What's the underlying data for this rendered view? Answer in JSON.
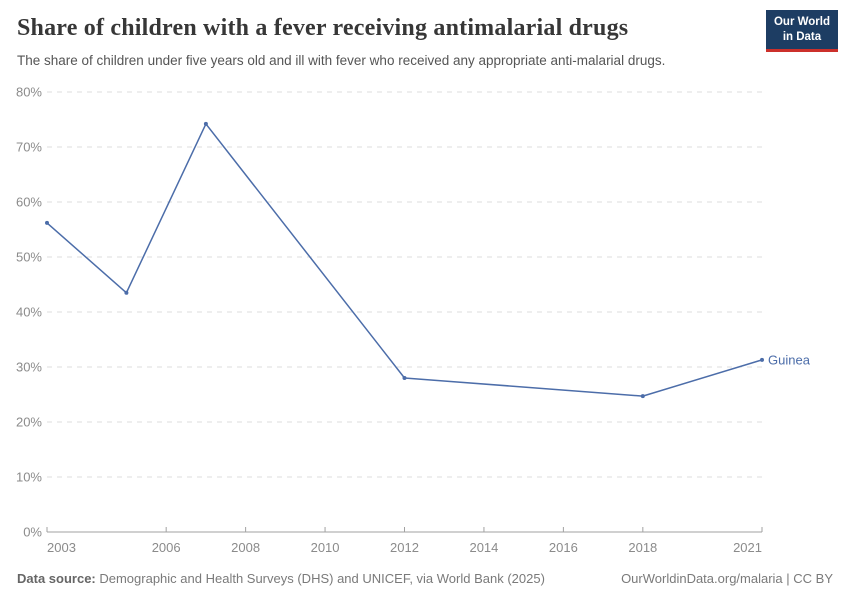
{
  "header": {
    "title": "Share of children with a fever receiving antimalarial drugs",
    "subtitle": "The share of children under five years old and ill with fever who received any appropriate anti-malarial drugs.",
    "logo": {
      "line1": "Our World",
      "line2": "in Data",
      "bg_color": "#1d3d63",
      "accent_color": "#cc302b"
    }
  },
  "chart_data": {
    "type": "line",
    "title": "Share of children with a fever receiving antimalarial drugs",
    "xlabel": "",
    "ylabel": "",
    "x_range": [
      2003,
      2021
    ],
    "x_ticks": [
      2003,
      2006,
      2008,
      2010,
      2012,
      2014,
      2016,
      2018,
      2021
    ],
    "ylim": [
      0,
      80
    ],
    "y_tick_step": 10,
    "y_tick_suffix": "%",
    "grid": "horizontal-dashed",
    "legend_position": "end-of-line",
    "colors": {
      "grid": "#dedede",
      "axis": "#a1a1a1",
      "tick_label": "#8b8b8b"
    },
    "series": [
      {
        "name": "Guinea",
        "color": "#4c6da9",
        "points": [
          {
            "year": 2003,
            "value": 56.2
          },
          {
            "year": 2005,
            "value": 43.5
          },
          {
            "year": 2007,
            "value": 74.2
          },
          {
            "year": 2012,
            "value": 28.0
          },
          {
            "year": 2018,
            "value": 24.7
          },
          {
            "year": 2021,
            "value": 31.3
          }
        ]
      }
    ]
  },
  "footer": {
    "data_source_label": "Data source:",
    "data_source_text": " Demographic and Health Surveys (DHS) and UNICEF, via World Bank (2025)",
    "credit": "OurWorldinData.org/malaria | CC BY"
  }
}
